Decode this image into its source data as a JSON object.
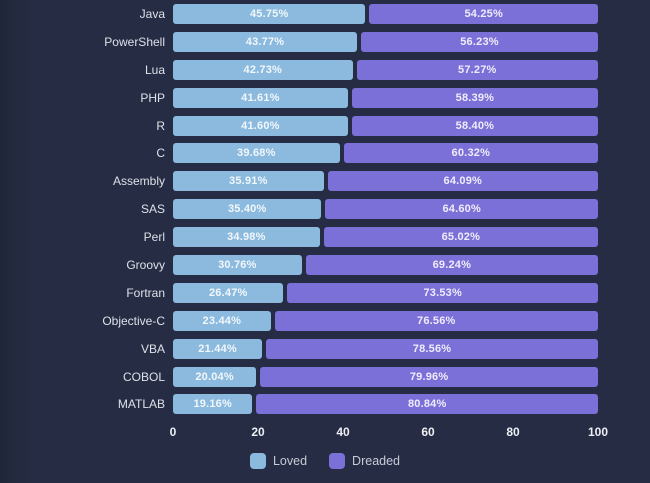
{
  "chart_data": {
    "type": "bar",
    "orientation": "horizontal",
    "stacked": true,
    "title": "",
    "xlabel": "",
    "ylabel": "",
    "xlim": [
      0,
      100
    ],
    "grid": false,
    "categories": [
      "Java",
      "PowerShell",
      "Lua",
      "PHP",
      "R",
      "C",
      "Assembly",
      "SAS",
      "Perl",
      "Groovy",
      "Fortran",
      "Objective-C",
      "VBA",
      "COBOL",
      "MATLAB"
    ],
    "series": [
      {
        "name": "Loved",
        "color": "#8bbade",
        "values": [
          45.75,
          43.77,
          42.73,
          41.61,
          41.6,
          39.68,
          35.91,
          35.4,
          34.98,
          30.76,
          26.47,
          23.44,
          21.44,
          20.04,
          19.16
        ],
        "labels": [
          "45.75%",
          "43.77%",
          "42.73%",
          "41.61%",
          "41.60%",
          "39.68%",
          "35.91%",
          "35.40%",
          "34.98%",
          "30.76%",
          "26.47%",
          "23.44%",
          "21.44%",
          "20.04%",
          "19.16%"
        ]
      },
      {
        "name": "Dreaded",
        "color": "#7b6fd8",
        "values": [
          54.25,
          56.23,
          57.27,
          58.39,
          58.4,
          60.32,
          64.09,
          64.6,
          65.02,
          69.24,
          73.53,
          76.56,
          78.56,
          79.96,
          80.84
        ],
        "labels": [
          "54.25%",
          "56.23%",
          "57.27%",
          "58.39%",
          "58.40%",
          "60.32%",
          "64.09%",
          "64.60%",
          "65.02%",
          "69.24%",
          "73.53%",
          "76.56%",
          "78.56%",
          "79.96%",
          "80.84%"
        ]
      }
    ],
    "x_axis": {
      "ticks": [
        {
          "label": "0",
          "value": 0
        },
        {
          "label": "20",
          "value": 20
        },
        {
          "label": "40",
          "value": 40
        },
        {
          "label": "60",
          "value": 60
        },
        {
          "label": "80",
          "value": 80
        },
        {
          "label": "100",
          "value": 100
        }
      ]
    },
    "legend": {
      "position": "bottom",
      "items": [
        {
          "label": "Loved",
          "color": "#8bbade"
        },
        {
          "label": "Dreaded",
          "color": "#7b6fd8"
        }
      ]
    },
    "colors": {
      "background": "#262c44",
      "category_label": "#dde1e8",
      "tick_label": "#edeff4",
      "bar_value_label": "#ffffff",
      "legend_label": "#c7ccd6"
    }
  }
}
